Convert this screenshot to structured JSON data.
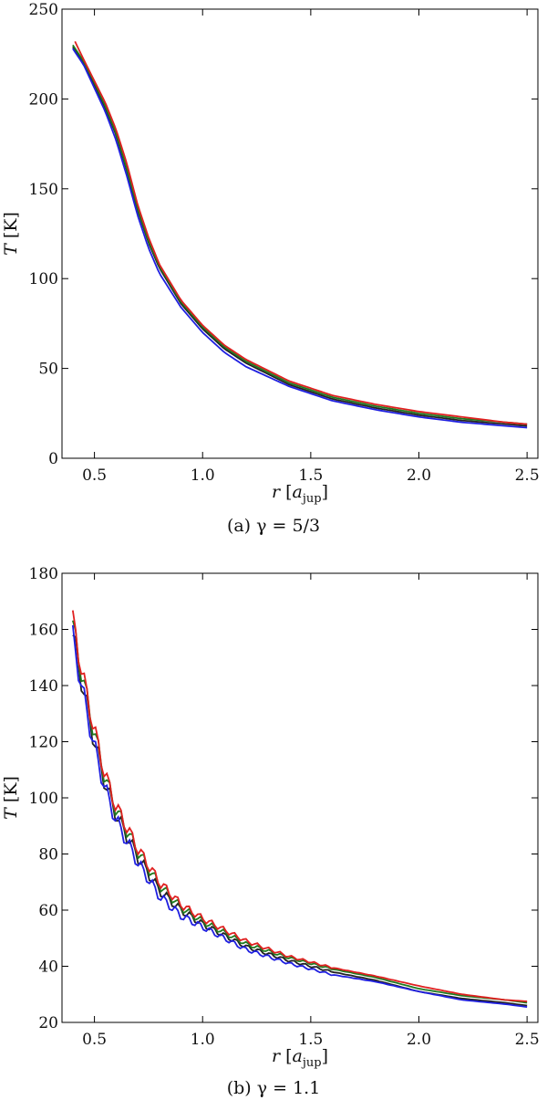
{
  "chart_data": [
    {
      "type": "line",
      "panel": "a",
      "caption": "(a) γ = 5/3",
      "xlabel": "r [a_jup]",
      "ylabel": "T [K]",
      "xlim": [
        0.35,
        2.55
      ],
      "ylim": [
        0,
        250
      ],
      "xticks": [
        "0.5",
        "1.0",
        "1.5",
        "2.0",
        "2.5"
      ],
      "yticks": [
        "0",
        "50",
        "100",
        "150",
        "200",
        "250"
      ],
      "grid": false,
      "oscillation": 0,
      "series": [
        {
          "color": "#222222",
          "x": [
            0.4,
            0.45,
            0.5,
            0.55,
            0.6,
            0.65,
            0.7,
            0.75,
            0.8,
            0.9,
            1.0,
            1.1,
            1.2,
            1.4,
            1.6,
            1.8,
            2.0,
            2.2,
            2.4,
            2.5
          ],
          "y": [
            229,
            220,
            208,
            195,
            180,
            160,
            138,
            120,
            106,
            86,
            72,
            61,
            53,
            41,
            33,
            28,
            24,
            21,
            19,
            18
          ]
        },
        {
          "color": "#1f7a1f",
          "x": [
            0.4,
            0.45,
            0.5,
            0.55,
            0.6,
            0.65,
            0.7,
            0.75,
            0.8,
            0.9,
            1.0,
            1.1,
            1.2,
            1.4,
            1.6,
            1.8,
            2.0,
            2.2,
            2.4,
            2.5
          ],
          "y": [
            230,
            221,
            209,
            196,
            181,
            161,
            139,
            121,
            107,
            87,
            73,
            62,
            54,
            42,
            34,
            29,
            25,
            22,
            20,
            19
          ]
        },
        {
          "color": "#e02020",
          "x": [
            0.41,
            0.45,
            0.5,
            0.55,
            0.6,
            0.65,
            0.7,
            0.75,
            0.8,
            0.9,
            1.0,
            1.1,
            1.2,
            1.4,
            1.6,
            1.8,
            2.0,
            2.2,
            2.4,
            2.5
          ],
          "y": [
            232,
            222,
            210,
            198,
            183,
            164,
            141,
            123,
            108,
            88,
            74,
            63,
            55,
            43,
            35,
            30,
            26,
            23,
            20,
            19
          ]
        },
        {
          "color": "#1f1fe0",
          "x": [
            0.4,
            0.45,
            0.5,
            0.55,
            0.6,
            0.65,
            0.7,
            0.75,
            0.8,
            0.9,
            1.0,
            1.1,
            1.2,
            1.4,
            1.6,
            1.8,
            2.0,
            2.2,
            2.4,
            2.5
          ],
          "y": [
            228,
            219,
            206,
            193,
            177,
            157,
            135,
            117,
            103,
            84,
            70,
            59,
            51,
            40,
            32,
            27,
            23,
            20,
            18,
            17
          ]
        }
      ]
    },
    {
      "type": "line",
      "panel": "b",
      "caption": "(b) γ = 1.1",
      "xlabel": "r [a_jup]",
      "ylabel": "T [K]",
      "xlim": [
        0.35,
        2.55
      ],
      "ylim": [
        20,
        180
      ],
      "xticks": [
        "0.5",
        "1.0",
        "1.5",
        "2.0",
        "2.5"
      ],
      "yticks": [
        "20",
        "40",
        "60",
        "80",
        "100",
        "120",
        "140",
        "160",
        "180"
      ],
      "grid": false,
      "oscillation": 1,
      "series": [
        {
          "color": "#222222",
          "x": [
            0.4,
            0.45,
            0.5,
            0.55,
            0.6,
            0.7,
            0.8,
            0.9,
            1.0,
            1.1,
            1.2,
            1.4,
            1.6,
            1.8,
            2.0,
            2.2,
            2.4,
            2.5
          ],
          "y": [
            158,
            138,
            120,
            105,
            94,
            79,
            67,
            60,
            55,
            51,
            47,
            42,
            38,
            35,
            31,
            28.5,
            27,
            26
          ]
        },
        {
          "color": "#1f7a1f",
          "x": [
            0.4,
            0.45,
            0.5,
            0.55,
            0.6,
            0.7,
            0.8,
            0.9,
            1.0,
            1.1,
            1.2,
            1.4,
            1.6,
            1.8,
            2.0,
            2.2,
            2.4,
            2.5
          ],
          "y": [
            161,
            141,
            123,
            107,
            96,
            81,
            69,
            61,
            56,
            52,
            48,
            43,
            39,
            36,
            32,
            29.5,
            28,
            27
          ]
        },
        {
          "color": "#e02020",
          "x": [
            0.4,
            0.45,
            0.5,
            0.55,
            0.6,
            0.7,
            0.8,
            0.9,
            1.0,
            1.1,
            1.2,
            1.4,
            1.6,
            1.8,
            2.0,
            2.2,
            2.4,
            2.5
          ],
          "y": [
            163,
            142,
            124,
            108,
            97,
            82,
            70,
            62,
            57,
            53,
            49,
            43.5,
            39.5,
            36.5,
            33,
            30,
            28,
            27.5
          ]
        },
        {
          "color": "#1f1fe0",
          "x": [
            0.4,
            0.45,
            0.5,
            0.55,
            0.6,
            0.7,
            0.8,
            0.9,
            1.0,
            1.1,
            1.2,
            1.4,
            1.6,
            1.8,
            2.0,
            2.2,
            2.4,
            2.5
          ],
          "y": [
            157,
            136,
            118,
            103,
            92,
            77,
            65,
            58,
            54,
            50,
            46,
            41,
            37,
            34.5,
            31,
            28,
            26.5,
            25.5
          ]
        }
      ]
    }
  ]
}
